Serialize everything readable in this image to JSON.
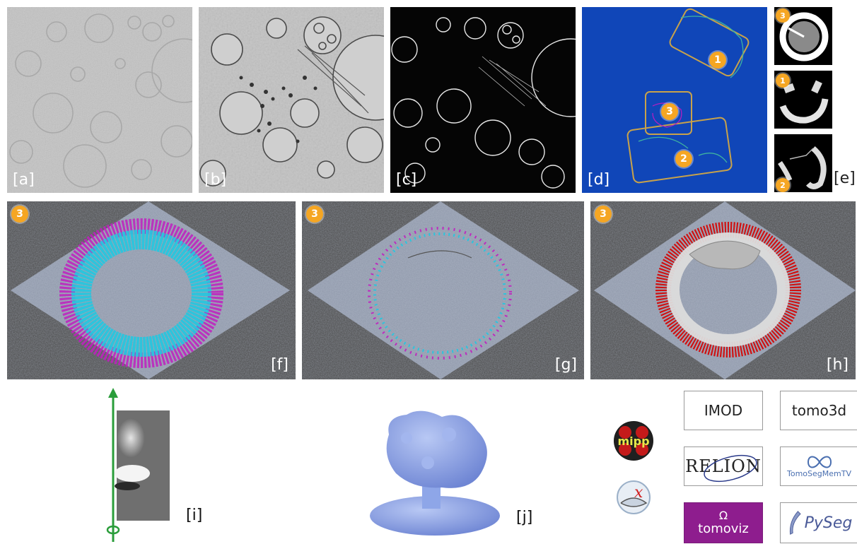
{
  "panels": {
    "a": {
      "label": "[a]"
    },
    "b": {
      "label": "[b]"
    },
    "c": {
      "label": "[c]"
    },
    "d": {
      "label": "[d]",
      "badges": [
        "1",
        "3",
        "2"
      ],
      "background": "#1046b8",
      "box_color": "#c8a24a"
    },
    "e": {
      "label": "[e]",
      "badges": [
        "3",
        "1",
        "2"
      ]
    },
    "f": {
      "label": "[f]",
      "badge": "3"
    },
    "g": {
      "label": "[g]",
      "badge": "3"
    },
    "h": {
      "label": "[h]",
      "badge": "3"
    },
    "i": {
      "label": "[i]"
    },
    "j": {
      "label": "[j]"
    }
  },
  "colors": {
    "badge": "#f5a623",
    "cyan": "#22c8e0",
    "magenta": "#c020c0",
    "red_vectors": "#d01010",
    "axis_green": "#2a9d3a",
    "map_blue": "#8ea6e8"
  },
  "logos": {
    "imod": "IMOD",
    "tomo3d": "tomo3d",
    "relion": "RELION",
    "tomosegmemtv": "TomoSegMemTV",
    "tomoviz": "tomoviz",
    "pyseg": "PySeg",
    "mipp": "mipp",
    "icons": [
      "mipp-icon",
      "xmipp-icon"
    ]
  }
}
